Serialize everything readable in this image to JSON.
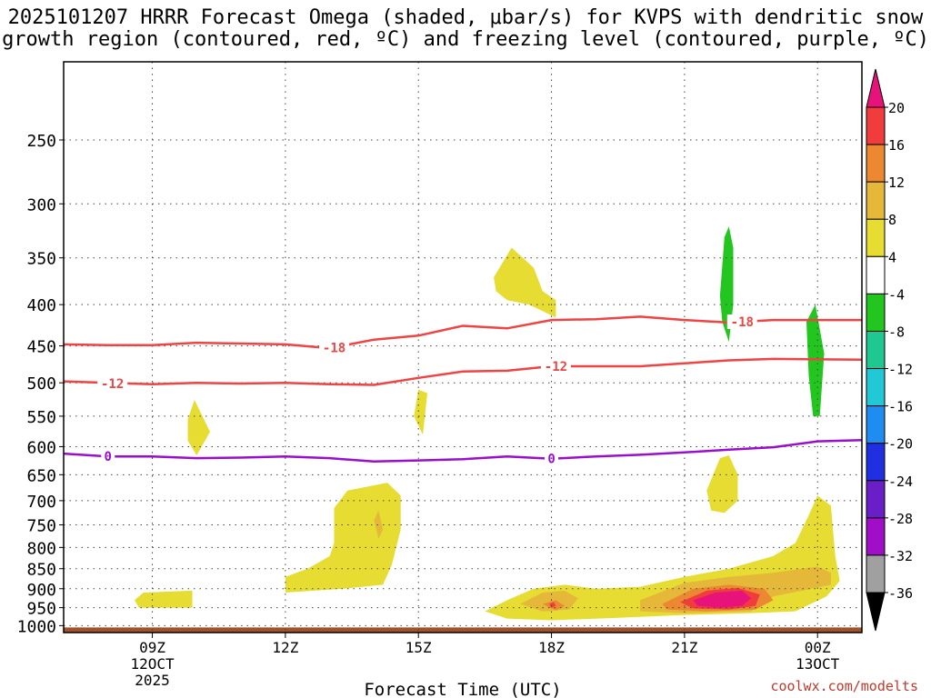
{
  "header": {
    "title_line1": "2025101207 HRRR Forecast Omega (shaded, μbar/s) for KVPS with dendritic snow",
    "title_line2": "growth region (contoured, red, ºC) and freezing level (contoured, purple, ºC)"
  },
  "footer": {
    "credit": "coolwx.com/modelts"
  },
  "colors": {
    "isotherm": "#ee4444",
    "freezing_level": "#9a0fce",
    "ground": "#a0522d",
    "grid": "#444444"
  },
  "chart_data": {
    "type": "time-height cross-section",
    "title": "2025101207 HRRR Forecast Omega (shaded, μbar/s) for KVPS with dendritic snow growth region (contoured, red, ºC) and freezing level (contoured, purple, ºC)",
    "xlabel": "Forecast Time (UTC)",
    "ylabel": "Pressure (hPa)",
    "xlim_hours": [
      7,
      25
    ],
    "ylim_hpa": [
      1020,
      200
    ],
    "x_ticks": [
      {
        "hour": 9,
        "lines": [
          "09Z",
          "12OCT",
          "2025"
        ]
      },
      {
        "hour": 12,
        "lines": [
          "12Z"
        ]
      },
      {
        "hour": 15,
        "lines": [
          "15Z"
        ]
      },
      {
        "hour": 18,
        "lines": [
          "18Z"
        ]
      },
      {
        "hour": 21,
        "lines": [
          "21Z"
        ]
      },
      {
        "hour": 24,
        "lines": [
          "00Z",
          "13OCT"
        ]
      }
    ],
    "y_ticks": [
      250,
      300,
      350,
      400,
      450,
      500,
      550,
      600,
      650,
      700,
      750,
      800,
      850,
      900,
      950,
      1000
    ],
    "ground_pressure_hpa": 1000,
    "colorbar": {
      "labels": [
        "20",
        "16",
        "12",
        "8",
        "4",
        "-4",
        "-8",
        "-12",
        "-16",
        "-20",
        "-24",
        "-28",
        "-32",
        "-36"
      ],
      "bins": [
        {
          "from": 20,
          "to": null,
          "color": "#e8137a"
        },
        {
          "from": 16,
          "to": 20,
          "color": "#f03c3c"
        },
        {
          "from": 12,
          "to": 16,
          "color": "#ec8732"
        },
        {
          "from": 8,
          "to": 12,
          "color": "#e5b83a"
        },
        {
          "from": 4,
          "to": 8,
          "color": "#e6dc32"
        },
        {
          "from": -4,
          "to": 4,
          "color": "#ffffff"
        },
        {
          "from": -8,
          "to": -4,
          "color": "#22c61e"
        },
        {
          "from": -12,
          "to": -8,
          "color": "#1ec890"
        },
        {
          "from": -16,
          "to": -12,
          "color": "#22c8d6"
        },
        {
          "from": -20,
          "to": -16,
          "color": "#1e8cf0"
        },
        {
          "from": -24,
          "to": -20,
          "color": "#2030e0"
        },
        {
          "from": -28,
          "to": -24,
          "color": "#6a1ec8"
        },
        {
          "from": -32,
          "to": -28,
          "color": "#a00ec8"
        },
        {
          "from": -36,
          "to": -32,
          "color": "#a0a0a0"
        },
        {
          "from": null,
          "to": -36,
          "color": "#000000"
        }
      ]
    },
    "contours": [
      {
        "name": "-18",
        "label": "-18",
        "color": "#ee4444",
        "kind": "dendritic",
        "points": [
          [
            7,
            448
          ],
          [
            8,
            449
          ],
          [
            9,
            449
          ],
          [
            10,
            446
          ],
          [
            11,
            447
          ],
          [
            12,
            448
          ],
          [
            13,
            453
          ],
          [
            14,
            442
          ],
          [
            15,
            437
          ],
          [
            16,
            425
          ],
          [
            17,
            428
          ],
          [
            18,
            418
          ],
          [
            19,
            417
          ],
          [
            20,
            414
          ],
          [
            21,
            418
          ],
          [
            22,
            421
          ],
          [
            23,
            418
          ],
          [
            25,
            418
          ]
        ],
        "label_positions": [
          [
            13.1,
            452
          ],
          [
            22.3,
            420
          ]
        ]
      },
      {
        "name": "-12",
        "label": "-12",
        "color": "#ee4444",
        "kind": "dendritic",
        "points": [
          [
            7,
            498
          ],
          [
            8,
            500
          ],
          [
            9,
            502
          ],
          [
            10,
            500
          ],
          [
            11,
            501
          ],
          [
            12,
            500
          ],
          [
            13,
            502
          ],
          [
            14,
            503
          ],
          [
            15,
            493
          ],
          [
            16,
            484
          ],
          [
            17,
            483
          ],
          [
            18,
            477
          ],
          [
            19,
            477
          ],
          [
            20,
            477
          ],
          [
            21,
            473
          ],
          [
            22,
            469
          ],
          [
            23,
            467
          ],
          [
            25,
            468
          ]
        ],
        "label_positions": [
          [
            8.1,
            501
          ],
          [
            18.1,
            477
          ]
        ]
      },
      {
        "name": "0",
        "label": "0",
        "color": "#9a0fce",
        "kind": "freezing",
        "points": [
          [
            7,
            612
          ],
          [
            8,
            617
          ],
          [
            9,
            617
          ],
          [
            10,
            620
          ],
          [
            11,
            619
          ],
          [
            12,
            617
          ],
          [
            13,
            620
          ],
          [
            14,
            626
          ],
          [
            15,
            624
          ],
          [
            16,
            622
          ],
          [
            17,
            617
          ],
          [
            18,
            621
          ],
          [
            19,
            617
          ],
          [
            20,
            614
          ],
          [
            21,
            610
          ],
          [
            22,
            605
          ],
          [
            23,
            601
          ],
          [
            24,
            591
          ],
          [
            25,
            589
          ]
        ],
        "label_positions": [
          [
            8,
            617
          ],
          [
            18,
            621
          ]
        ]
      }
    ],
    "omega_regions": [
      {
        "name": "updraft-upper-left-sliver",
        "bin": -4,
        "points": [
          [
            14.85,
            310
          ],
          [
            14.9,
            295
          ],
          [
            15.0,
            288
          ],
          [
            15.1,
            296
          ],
          [
            15.15,
            310
          ],
          [
            15.0,
            318
          ]
        ]
      },
      {
        "name": "updraft-upper-left",
        "bin": -4,
        "points": [
          [
            21.2,
            370
          ],
          [
            21.2,
            320
          ],
          [
            21.3,
            290
          ],
          [
            21.6,
            274
          ],
          [
            22.0,
            300
          ],
          [
            22.3,
            360
          ],
          [
            22.5,
            430
          ],
          [
            22.6,
            480
          ],
          [
            22.5,
            510
          ],
          [
            22.0,
            525
          ],
          [
            21.5,
            490
          ],
          [
            21.2,
            430
          ],
          [
            21.0,
            410
          ]
        ]
      },
      {
        "name": "updraft-upper-left-core",
        "bin": -8,
        "points": [
          [
            21.8,
            390
          ],
          [
            21.9,
            330
          ],
          [
            22.0,
            320
          ],
          [
            22.1,
            340
          ],
          [
            22.1,
            400
          ],
          [
            22.0,
            445
          ],
          [
            21.85,
            420
          ]
        ]
      },
      {
        "name": "updraft-upper-right",
        "bin": -4,
        "points": [
          [
            23.2,
            420
          ],
          [
            23.5,
            355
          ],
          [
            23.65,
            345
          ],
          [
            23.9,
            380
          ],
          [
            24.2,
            440
          ],
          [
            24.5,
            520
          ],
          [
            24.5,
            550
          ],
          [
            24.1,
            580
          ],
          [
            23.6,
            560
          ],
          [
            23.2,
            510
          ],
          [
            23.1,
            470
          ]
        ]
      },
      {
        "name": "updraft-upper-right-core",
        "bin": -8,
        "points": [
          [
            23.75,
            420
          ],
          [
            23.95,
            400
          ],
          [
            24.15,
            460
          ],
          [
            24.05,
            550
          ],
          [
            23.9,
            550
          ],
          [
            23.8,
            490
          ]
        ]
      },
      {
        "name": "updraft-lower",
        "bin": -4,
        "points": [
          [
            14.8,
            800
          ],
          [
            15.0,
            780
          ],
          [
            15.2,
            820
          ],
          [
            15.3,
            870
          ],
          [
            15.1,
            920
          ],
          [
            14.9,
            930
          ],
          [
            14.75,
            880
          ]
        ]
      },
      {
        "name": "ascent-yellow-a",
        "bin": 4,
        "points": [
          [
            8.8,
            910
          ],
          [
            9.9,
            905
          ],
          [
            9.9,
            950
          ],
          [
            8.7,
            950
          ],
          [
            8.6,
            930
          ]
        ]
      },
      {
        "name": "ascent-yellow-b",
        "bin": 4,
        "points": [
          [
            9.8,
            555
          ],
          [
            9.95,
            525
          ],
          [
            10.3,
            575
          ],
          [
            10.0,
            615
          ],
          [
            9.8,
            590
          ]
        ]
      },
      {
        "name": "ascent-yellow-c",
        "bin": 4,
        "points": [
          [
            12.0,
            870
          ],
          [
            12.5,
            850
          ],
          [
            13.0,
            820
          ],
          [
            13.1,
            790
          ],
          [
            13.1,
            715
          ],
          [
            13.4,
            680
          ],
          [
            14.3,
            665
          ],
          [
            14.6,
            690
          ],
          [
            14.6,
            760
          ],
          [
            14.4,
            840
          ],
          [
            14.2,
            890
          ],
          [
            13.3,
            900
          ],
          [
            12.0,
            910
          ]
        ]
      },
      {
        "name": "ascent-yellow-c-core",
        "bin": 8,
        "points": [
          [
            14.0,
            740
          ],
          [
            14.1,
            720
          ],
          [
            14.2,
            760
          ],
          [
            14.1,
            780
          ]
        ]
      },
      {
        "name": "ascent-yellow-d",
        "bin": 4,
        "points": [
          [
            14.9,
            550
          ],
          [
            15.0,
            510
          ],
          [
            15.2,
            515
          ],
          [
            15.1,
            580
          ]
        ]
      },
      {
        "name": "ascent-yellow-e",
        "bin": 4,
        "points": [
          [
            16.7,
            370
          ],
          [
            17.1,
            340
          ],
          [
            17.6,
            360
          ],
          [
            17.8,
            385
          ],
          [
            18.1,
            395
          ],
          [
            18.1,
            415
          ],
          [
            17.5,
            400
          ],
          [
            17.0,
            395
          ],
          [
            16.75,
            385
          ]
        ]
      },
      {
        "name": "ascent-yellow-f",
        "bin": 4,
        "points": [
          [
            21.5,
            680
          ],
          [
            21.8,
            620
          ],
          [
            22.0,
            615
          ],
          [
            22.2,
            650
          ],
          [
            22.2,
            700
          ],
          [
            21.9,
            725
          ],
          [
            21.6,
            720
          ]
        ]
      },
      {
        "name": "ascent-lower-broad",
        "bin": 4,
        "points": [
          [
            16.5,
            960
          ],
          [
            17.0,
            930
          ],
          [
            17.6,
            900
          ],
          [
            18.3,
            890
          ],
          [
            19.0,
            900
          ],
          [
            20.0,
            895
          ],
          [
            21.0,
            870
          ],
          [
            22.0,
            850
          ],
          [
            23.0,
            820
          ],
          [
            23.5,
            790
          ],
          [
            23.8,
            730
          ],
          [
            24.0,
            690
          ],
          [
            24.3,
            710
          ],
          [
            24.4,
            820
          ],
          [
            24.5,
            880
          ],
          [
            24.2,
            920
          ],
          [
            23.5,
            960
          ],
          [
            22.5,
            965
          ],
          [
            21.0,
            970
          ],
          [
            19.5,
            978
          ],
          [
            18.0,
            985
          ],
          [
            17.0,
            980
          ]
        ]
      },
      {
        "name": "ascent-lower-orange-a",
        "bin": 8,
        "points": [
          [
            17.3,
            940
          ],
          [
            17.8,
            910
          ],
          [
            18.3,
            905
          ],
          [
            18.6,
            925
          ],
          [
            18.4,
            955
          ],
          [
            17.8,
            960
          ]
        ]
      },
      {
        "name": "ascent-lower-orange-b",
        "bin": 8,
        "points": [
          [
            20.0,
            930
          ],
          [
            21.0,
            885
          ],
          [
            22.0,
            870
          ],
          [
            23.0,
            860
          ],
          [
            24.0,
            845
          ],
          [
            24.3,
            860
          ],
          [
            24.3,
            890
          ],
          [
            23.0,
            920
          ],
          [
            22.5,
            960
          ],
          [
            21.0,
            965
          ],
          [
            20.0,
            960
          ]
        ]
      },
      {
        "name": "ascent-lower-orange-c",
        "bin": 12,
        "points": [
          [
            17.8,
            940
          ],
          [
            18.1,
            930
          ],
          [
            18.3,
            945
          ],
          [
            18.1,
            958
          ]
        ]
      },
      {
        "name": "ascent-lower-orange-d",
        "bin": 12,
        "points": [
          [
            20.5,
            940
          ],
          [
            21.2,
            900
          ],
          [
            22.0,
            890
          ],
          [
            22.8,
            900
          ],
          [
            23.0,
            930
          ],
          [
            22.6,
            955
          ],
          [
            21.5,
            960
          ],
          [
            20.6,
            955
          ]
        ]
      },
      {
        "name": "ascent-lower-red",
        "bin": 16,
        "points": [
          [
            20.9,
            935
          ],
          [
            21.5,
            905
          ],
          [
            22.2,
            898
          ],
          [
            22.7,
            915
          ],
          [
            22.6,
            945
          ],
          [
            22.0,
            955
          ],
          [
            21.2,
            952
          ]
        ]
      },
      {
        "name": "ascent-lower-magenta",
        "bin": 20,
        "points": [
          [
            21.2,
            930
          ],
          [
            21.7,
            910
          ],
          [
            22.3,
            905
          ],
          [
            22.5,
            925
          ],
          [
            22.3,
            945
          ],
          [
            21.8,
            950
          ],
          [
            21.3,
            945
          ]
        ]
      },
      {
        "name": "ascent-tiny-core",
        "bin": 16,
        "points": [
          [
            17.95,
            940
          ],
          [
            18.05,
            935
          ],
          [
            18.1,
            945
          ],
          [
            18.0,
            950
          ]
        ]
      }
    ]
  }
}
